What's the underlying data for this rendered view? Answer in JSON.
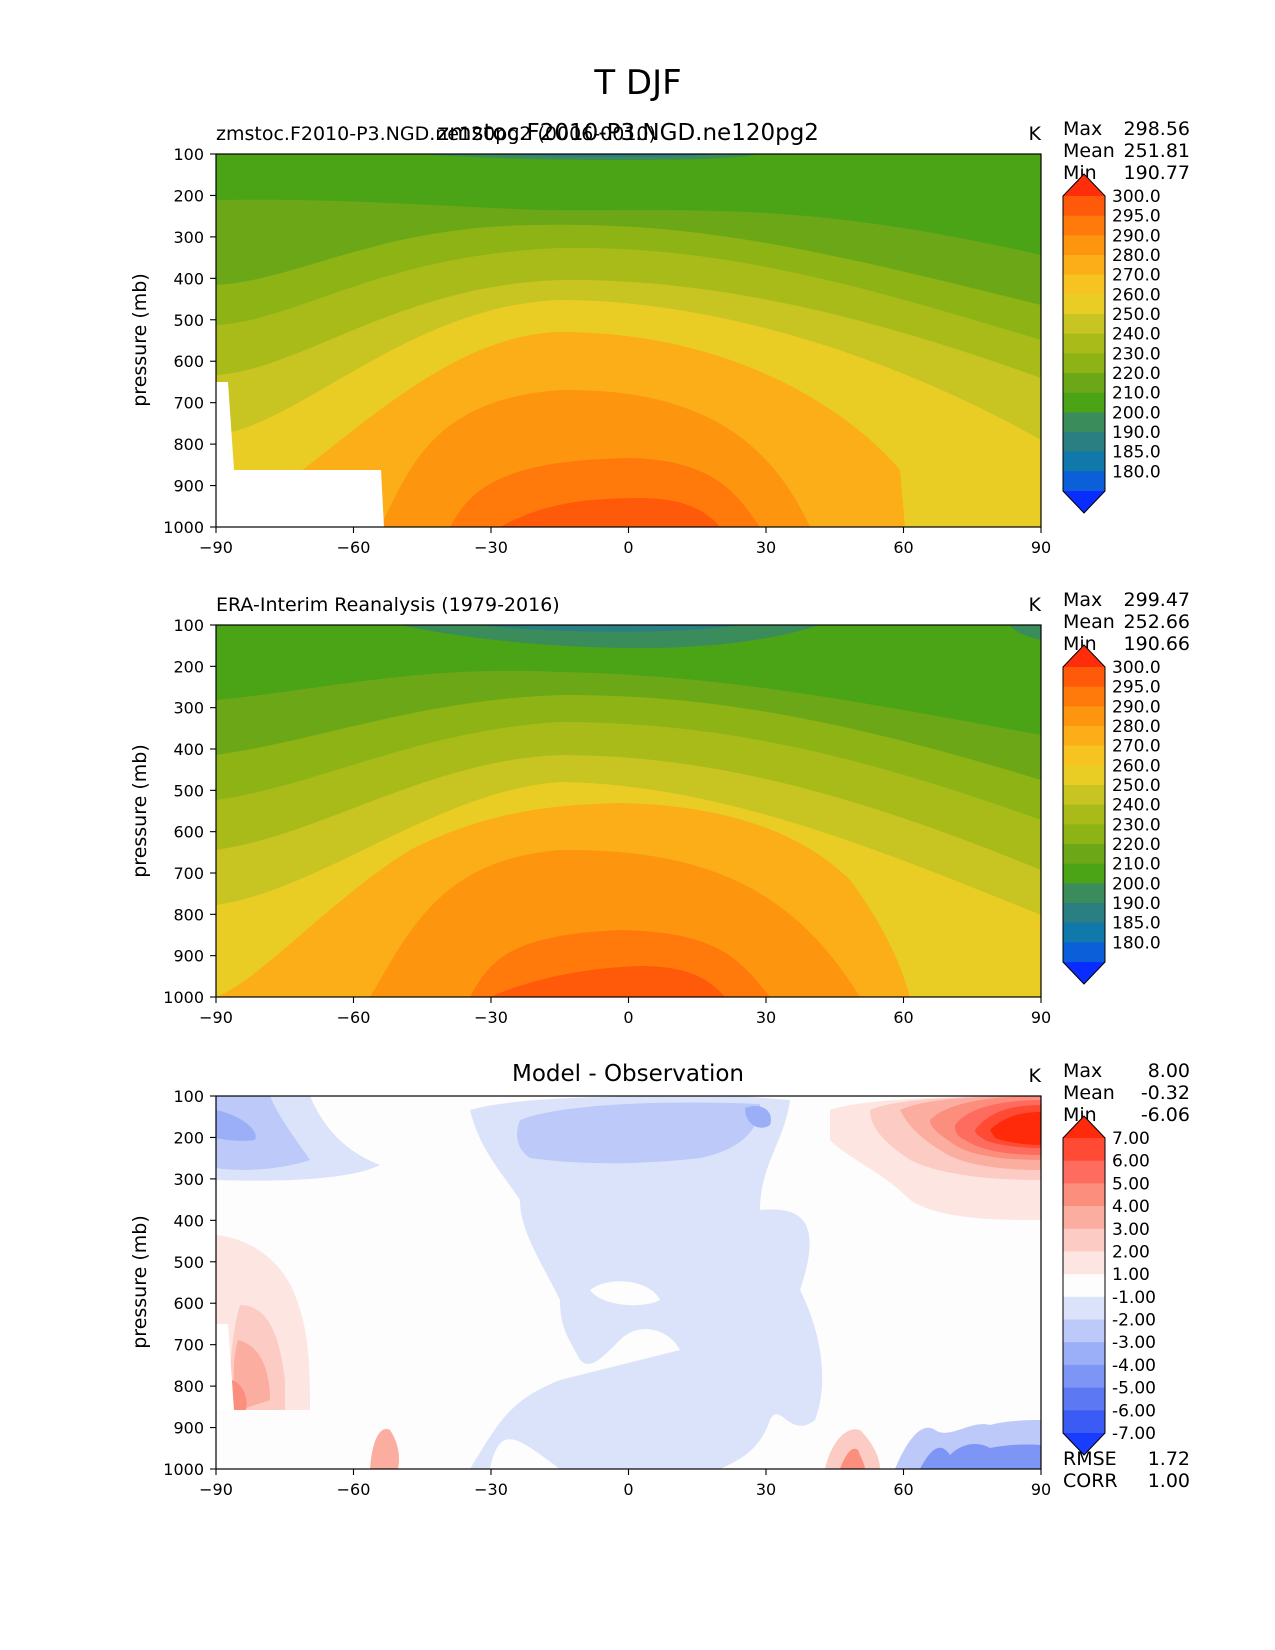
{
  "page_title": "T DJF",
  "units": "K",
  "chart_data": [
    {
      "type": "heatmap",
      "name": "model",
      "title": "zmstoc.F2010-P3.NGD.ne120pg2",
      "left_label": "zmstoc.F2010-P3.NGD.ne120pg2 (0006-0010)",
      "units": "K",
      "xlabel": "",
      "ylabel": "pressure (mb)",
      "xlim": [
        -90,
        90
      ],
      "ylim": [
        1000,
        100
      ],
      "x_ticks": [
        "−90",
        "−60",
        "−30",
        "0",
        "30",
        "60",
        "90"
      ],
      "y_ticks": [
        "100",
        "200",
        "300",
        "400",
        "500",
        "600",
        "700",
        "800",
        "900",
        "1000"
      ],
      "stats": {
        "max_label": "Max",
        "max": "298.56",
        "mean_label": "Mean",
        "mean": "251.81",
        "min_label": "Min",
        "min": "190.77"
      },
      "colorbar": {
        "levels": [
          "300.0",
          "295.0",
          "290.0",
          "280.0",
          "270.0",
          "260.0",
          "250.0",
          "240.0",
          "230.0",
          "220.0",
          "210.0",
          "200.0",
          "190.0",
          "185.0",
          "180.0"
        ],
        "colors": [
          "#ff2d0a",
          "#ff5a0a",
          "#ff7a0a",
          "#fd960e",
          "#fbae18",
          "#f7c321",
          "#e9cd24",
          "#c8c421",
          "#a9bb19",
          "#8db315",
          "#6ca717",
          "#4ba316",
          "#3a8c5a",
          "#2a7f82",
          "#1078aa",
          "#0b5fd8",
          "#0a2dff"
        ]
      },
      "missing_regions_note": "topography mask (no data) near the Antarctic surface"
    },
    {
      "type": "heatmap",
      "name": "observation",
      "title": "",
      "left_label": "ERA-Interim Reanalysis (1979-2016)",
      "units": "K",
      "xlabel": "",
      "ylabel": "pressure (mb)",
      "xlim": [
        -90,
        90
      ],
      "ylim": [
        1000,
        100
      ],
      "x_ticks": [
        "−90",
        "−60",
        "−30",
        "0",
        "30",
        "60",
        "90"
      ],
      "y_ticks": [
        "100",
        "200",
        "300",
        "400",
        "500",
        "600",
        "700",
        "800",
        "900",
        "1000"
      ],
      "stats": {
        "max_label": "Max",
        "max": "299.47",
        "mean_label": "Mean",
        "mean": "252.66",
        "min_label": "Min",
        "min": "190.66"
      },
      "colorbar": {
        "levels": [
          "300.0",
          "295.0",
          "290.0",
          "280.0",
          "270.0",
          "260.0",
          "250.0",
          "240.0",
          "230.0",
          "220.0",
          "210.0",
          "200.0",
          "190.0",
          "185.0",
          "180.0"
        ],
        "colors": [
          "#ff2d0a",
          "#ff5a0a",
          "#ff7a0a",
          "#fd960e",
          "#fbae18",
          "#f7c321",
          "#e9cd24",
          "#c8c421",
          "#a9bb19",
          "#8db315",
          "#6ca717",
          "#4ba316",
          "#3a8c5a",
          "#2a7f82",
          "#1078aa",
          "#0b5fd8",
          "#0a2dff"
        ]
      }
    },
    {
      "type": "heatmap",
      "name": "difference",
      "title": "Model - Observation",
      "left_label": "",
      "units": "K",
      "xlabel": "",
      "ylabel": "pressure (mb)",
      "xlim": [
        -90,
        90
      ],
      "ylim": [
        1000,
        100
      ],
      "x_ticks": [
        "−90",
        "−60",
        "−30",
        "0",
        "30",
        "60",
        "90"
      ],
      "y_ticks": [
        "100",
        "200",
        "300",
        "400",
        "500",
        "600",
        "700",
        "800",
        "900",
        "1000"
      ],
      "stats": {
        "max_label": "Max",
        "max": "8.00",
        "mean_label": "Mean",
        "mean": "-0.32",
        "min_label": "Min",
        "min": "-6.06"
      },
      "metrics": {
        "rmse_label": "RMSE",
        "rmse": "1.72",
        "corr_label": "CORR",
        "corr": "1.00"
      },
      "colorbar": {
        "levels": [
          "7.00",
          "6.00",
          "5.00",
          "4.00",
          "3.00",
          "2.00",
          "1.00",
          "-1.00",
          "-2.00",
          "-3.00",
          "-4.00",
          "-5.00",
          "-6.00",
          "-7.00"
        ],
        "colors": [
          "#ff2a0a",
          "#ff4b34",
          "#fd6c5e",
          "#fc8e7d",
          "#fbaea0",
          "#fcccc4",
          "#fde6e2",
          "#fdfdfd",
          "#dbe3fb",
          "#bcc9f9",
          "#9aaff7",
          "#7d95f4",
          "#5c78f2",
          "#3a5cf5",
          "#1a3cff"
        ]
      }
    }
  ]
}
